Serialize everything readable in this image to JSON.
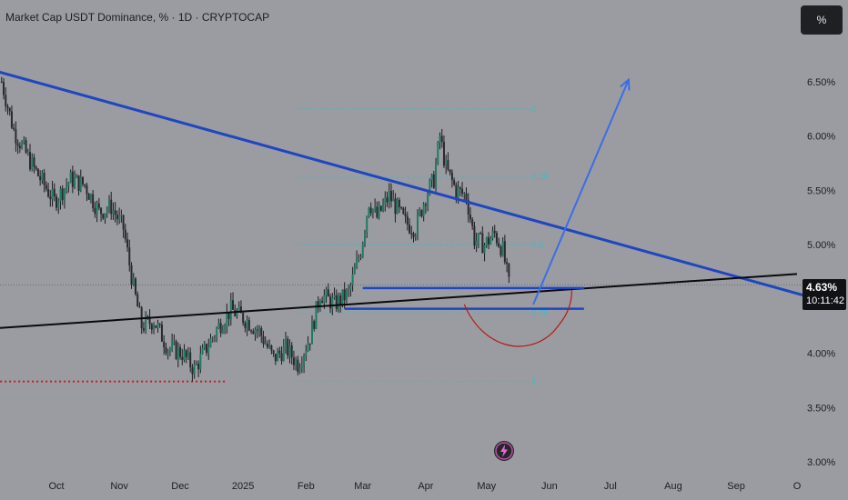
{
  "header": {
    "title": "Market Cap USDT Dominance, % · 1D · CRYPTOCAP",
    "unit_label": "%"
  },
  "current": {
    "price_label": "4.63%",
    "countdown": "10:11:42"
  },
  "colors": {
    "background": "#9a9ca1",
    "grid": "#a6a8ad",
    "candle_up": "#1f7a63",
    "candle_down": "#2a2a2e",
    "wick": "#1e1e22",
    "trendline_down": "#1f45c2",
    "trendline_up": "#0a0a0c",
    "projection": "#3d6de6",
    "fib": "#3fb9c9",
    "support_box": "#1f45c2",
    "curve": "#b51a1a",
    "support_dots": "#c21a2a"
  },
  "chart_data": {
    "type": "candlestick",
    "title": "Market Cap USDT Dominance, % · 1D · CRYPTOCAP",
    "y_unit": "%",
    "ylim": [
      2.9,
      6.9
    ],
    "y_ticks": [
      "6.50%",
      "6.00%",
      "5.50%",
      "5.00%",
      "4.50%",
      "4.00%",
      "3.50%",
      "3.00%"
    ],
    "y_tick_values": [
      6.5,
      6.0,
      5.5,
      5.0,
      4.5,
      4.0,
      3.5,
      3.0
    ],
    "x_ticks": [
      "Oct",
      "Nov",
      "Dec",
      "2025",
      "Feb",
      "Mar",
      "Apr",
      "May",
      "Jun",
      "Jul",
      "Aug",
      "Sep",
      "O"
    ],
    "x_tick_dates": [
      "2024-10-01",
      "2024-11-01",
      "2024-12-01",
      "2025-01-01",
      "2025-02-01",
      "2025-03-01",
      "2025-04-01",
      "2025-05-01",
      "2025-06-01",
      "2025-07-01",
      "2025-08-01",
      "2025-09-01",
      "2025-10-01"
    ],
    "close_path": [
      [
        "2024-09-04",
        6.5
      ],
      [
        "2024-09-10",
        6.05
      ],
      [
        "2024-09-20",
        5.7
      ],
      [
        "2024-09-30",
        5.4
      ],
      [
        "2024-10-08",
        5.6
      ],
      [
        "2024-10-15",
        5.55
      ],
      [
        "2024-10-22",
        5.3
      ],
      [
        "2024-10-28",
        5.35
      ],
      [
        "2024-11-03",
        5.15
      ],
      [
        "2024-11-08",
        4.6
      ],
      [
        "2024-11-12",
        4.25
      ],
      [
        "2024-11-18",
        4.3
      ],
      [
        "2024-11-25",
        4.05
      ],
      [
        "2024-12-02",
        4.0
      ],
      [
        "2024-12-08",
        3.85
      ],
      [
        "2024-12-14",
        4.05
      ],
      [
        "2024-12-20",
        4.25
      ],
      [
        "2024-12-26",
        4.4
      ],
      [
        "2025-01-03",
        4.3
      ],
      [
        "2025-01-09",
        4.2
      ],
      [
        "2025-01-16",
        3.95
      ],
      [
        "2025-01-22",
        4.05
      ],
      [
        "2025-01-28",
        3.9
      ],
      [
        "2025-02-03",
        4.15
      ],
      [
        "2025-02-08",
        4.55
      ],
      [
        "2025-02-15",
        4.45
      ],
      [
        "2025-02-22",
        4.55
      ],
      [
        "2025-02-28",
        4.95
      ],
      [
        "2025-03-04",
        5.4
      ],
      [
        "2025-03-08",
        5.25
      ],
      [
        "2025-03-14",
        5.45
      ],
      [
        "2025-03-22",
        5.2
      ],
      [
        "2025-03-27",
        5.15
      ],
      [
        "2025-04-01",
        5.45
      ],
      [
        "2025-04-05",
        5.6
      ],
      [
        "2025-04-08",
        6.0
      ],
      [
        "2025-04-11",
        5.7
      ],
      [
        "2025-04-16",
        5.5
      ],
      [
        "2025-04-21",
        5.45
      ],
      [
        "2025-04-25",
        5.05
      ],
      [
        "2025-04-30",
        5.0
      ],
      [
        "2025-05-05",
        5.1
      ],
      [
        "2025-05-09",
        4.95
      ],
      [
        "2025-05-12",
        4.63
      ]
    ],
    "series": [
      {
        "name": "",
        "type": "trendline",
        "points": [
          [
            "2024-09-01",
            6.6
          ],
          [
            "2025-10-05",
            4.53
          ]
        ]
      },
      {
        "name": "",
        "type": "trendline",
        "points": [
          [
            "2024-09-01",
            4.23
          ],
          [
            "2025-10-01",
            4.73
          ]
        ]
      },
      {
        "name": "",
        "type": "projection",
        "points": [
          [
            "2025-05-24",
            4.45
          ],
          [
            "2025-07-10",
            6.52
          ]
        ]
      }
    ],
    "fib_levels": [
      {
        "label": "0",
        "value": 6.25
      },
      {
        "label": "0.25",
        "value": 5.62
      },
      {
        "label": "0.5",
        "value": 5.0
      },
      {
        "label": "0.75",
        "value": 4.37
      },
      {
        "label": "1",
        "value": 3.74
      }
    ],
    "support_zone": {
      "upper": 4.6,
      "lower": 4.41,
      "from": "2025-03-01",
      "to": "2025-06-18"
    },
    "support_dotted": {
      "value": 3.74,
      "from": "2024-09-01",
      "to": "2024-12-24"
    },
    "grid": false,
    "legend": "none"
  }
}
